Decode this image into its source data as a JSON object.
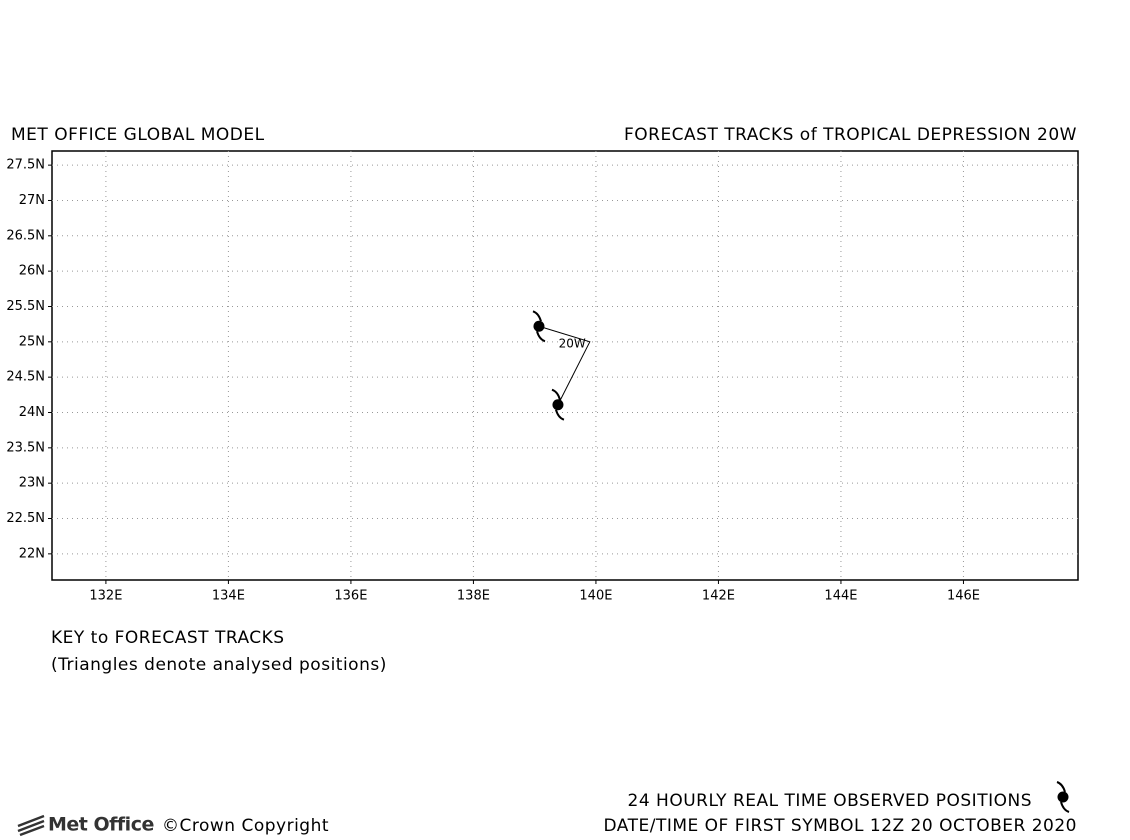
{
  "chart_data": {
    "type": "track",
    "title_left": "MET OFFICE GLOBAL MODEL",
    "title_right": "FORECAST TRACKS of TROPICAL DEPRESSION 20W",
    "key_title": "KEY to FORECAST TRACKS",
    "key_note": "(Triangles denote analysed positions)",
    "observed_note": "24 HOURLY REAL TIME OBSERVED POSITIONS",
    "first_symbol_note": "DATE/TIME OF FIRST SYMBOL 12Z 20 OCTOBER 2020",
    "brand": "Met Office",
    "copyright": "©Crown Copyright",
    "xlim": [
      131.12,
      147.87
    ],
    "ylim": [
      21.63,
      27.7
    ],
    "grid": true,
    "xticks": [
      {
        "value": 132,
        "label": "132E"
      },
      {
        "value": 134,
        "label": "134E"
      },
      {
        "value": 136,
        "label": "136E"
      },
      {
        "value": 138,
        "label": "138E"
      },
      {
        "value": 140,
        "label": "140E"
      },
      {
        "value": 142,
        "label": "142E"
      },
      {
        "value": 144,
        "label": "144E"
      },
      {
        "value": 146,
        "label": "146E"
      }
    ],
    "yticks": [
      {
        "value": 22,
        "label": "22N"
      },
      {
        "value": 22.5,
        "label": "22.5N"
      },
      {
        "value": 23,
        "label": "23N"
      },
      {
        "value": 23.5,
        "label": "23.5N"
      },
      {
        "value": 24,
        "label": "24N"
      },
      {
        "value": 24.5,
        "label": "24.5N"
      },
      {
        "value": 25,
        "label": "25N"
      },
      {
        "value": 25.5,
        "label": "25.5N"
      },
      {
        "value": 26,
        "label": "26N"
      },
      {
        "value": 26.5,
        "label": "26.5N"
      },
      {
        "value": 27,
        "label": "27N"
      },
      {
        "value": 27.5,
        "label": "27.5N"
      }
    ],
    "series": [
      {
        "name": "20W",
        "color": "#000000",
        "x": [
          139.38,
          139.9,
          139.07
        ],
        "values": [
          24.11,
          25.0,
          25.22
        ],
        "symbols": {
          "x": [
            139.38,
            139.07
          ],
          "values": [
            24.11,
            25.22
          ]
        }
      }
    ]
  }
}
